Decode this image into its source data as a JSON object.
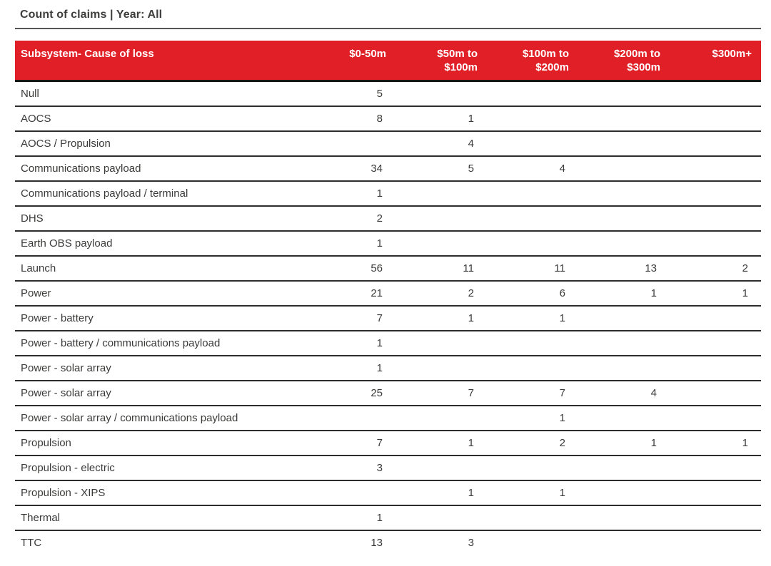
{
  "title": "Count of claims | Year: All",
  "colors": {
    "header_bg": "#e01f26",
    "header_text": "#ffffff",
    "body_text": "#3a3a39",
    "title_text": "#3e3e3d",
    "row_divider": "#2d2c2b",
    "header_divider": "#161614",
    "title_rule": "#55565a"
  },
  "chart_data": {
    "type": "table",
    "title": "Count of claims | Year: All",
    "columns": [
      "Subsystem- Cause of loss",
      "$0-50m",
      "$50m to\n$100m",
      "$100m to\n$200m",
      "$200m to\n$300m",
      "$300m+"
    ],
    "rows": [
      {
        "label": "Null",
        "values": [
          "5",
          "",
          "",
          "",
          ""
        ]
      },
      {
        "label": "AOCS",
        "values": [
          "8",
          "1",
          "",
          "",
          ""
        ]
      },
      {
        "label": "AOCS / Propulsion",
        "values": [
          "",
          "4",
          "",
          "",
          ""
        ]
      },
      {
        "label": "Communications payload",
        "values": [
          "34",
          "5",
          "4",
          "",
          ""
        ]
      },
      {
        "label": "Communications payload / terminal",
        "values": [
          "1",
          "",
          "",
          "",
          ""
        ]
      },
      {
        "label": "DHS",
        "values": [
          "2",
          "",
          "",
          "",
          ""
        ]
      },
      {
        "label": "Earth OBS payload",
        "values": [
          "1",
          "",
          "",
          "",
          ""
        ]
      },
      {
        "label": "Launch",
        "values": [
          "56",
          "11",
          "11",
          "13",
          "2"
        ]
      },
      {
        "label": "Power",
        "values": [
          "21",
          "2",
          "6",
          "1",
          "1"
        ]
      },
      {
        "label": "Power - battery",
        "values": [
          "7",
          "1",
          "1",
          "",
          ""
        ]
      },
      {
        "label": "Power - battery / communications payload",
        "values": [
          "1",
          "",
          "",
          "",
          ""
        ]
      },
      {
        "label": "Power - solar array",
        "values": [
          "1",
          "",
          "",
          "",
          ""
        ]
      },
      {
        "label": "Power - solar array",
        "values": [
          "25",
          "7",
          "7",
          "4",
          ""
        ]
      },
      {
        "label": "Power - solar array / communications payload",
        "values": [
          "",
          "",
          "1",
          "",
          ""
        ]
      },
      {
        "label": "Propulsion",
        "values": [
          "7",
          "1",
          "2",
          "1",
          "1"
        ]
      },
      {
        "label": "Propulsion - electric",
        "values": [
          "3",
          "",
          "",
          "",
          ""
        ]
      },
      {
        "label": "Propulsion - XIPS",
        "values": [
          "",
          "1",
          "1",
          "",
          ""
        ]
      },
      {
        "label": "Thermal",
        "values": [
          "1",
          "",
          "",
          "",
          ""
        ]
      },
      {
        "label": "TTC",
        "values": [
          "13",
          "3",
          "",
          "",
          ""
        ]
      }
    ]
  }
}
